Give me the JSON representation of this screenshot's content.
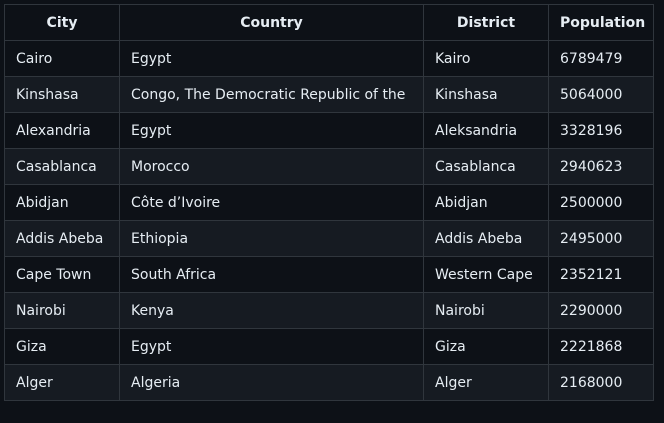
{
  "table": {
    "headers": [
      "City",
      "Country",
      "District",
      "Population"
    ],
    "rows": [
      [
        "Cairo",
        "Egypt",
        "Kairo",
        "6789479"
      ],
      [
        "Kinshasa",
        "Congo, The Democratic Republic of the",
        "Kinshasa",
        "5064000"
      ],
      [
        "Alexandria",
        "Egypt",
        "Aleksandria",
        "3328196"
      ],
      [
        "Casablanca",
        "Morocco",
        "Casablanca",
        "2940623"
      ],
      [
        "Abidjan",
        "Côte d’Ivoire",
        "Abidjan",
        "2500000"
      ],
      [
        "Addis Abeba",
        "Ethiopia",
        "Addis Abeba",
        "2495000"
      ],
      [
        "Cape Town",
        "South Africa",
        "Western Cape",
        "2352121"
      ],
      [
        "Nairobi",
        "Kenya",
        "Nairobi",
        "2290000"
      ],
      [
        "Giza",
        "Egypt",
        "Giza",
        "2221868"
      ],
      [
        "Alger",
        "Algeria",
        "Alger",
        "2168000"
      ]
    ]
  },
  "colors": {
    "background": "#0d1117",
    "row_alt": "#161b22",
    "border": "#30363d",
    "text": "#e6edf3"
  }
}
